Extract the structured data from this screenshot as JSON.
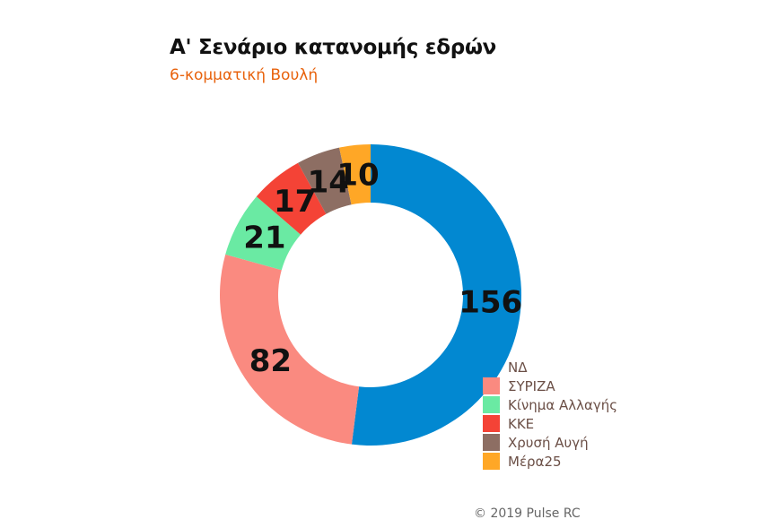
{
  "chart_data": {
    "type": "pie",
    "variant": "donut",
    "title": "Α' Σενάριο κατανομής εδρών",
    "subtitle": "6-κομματική Βουλή",
    "caption": "© 2019 Pulse RC",
    "legend_position": "bottom-right",
    "categories": [
      "ΝΔ",
      "ΣΥΡΙΖΑ",
      "Κίνημα Αλλαγής",
      "ΚΚΕ",
      "Χρυσή Αυγή",
      "Μέρα25"
    ],
    "values": [
      156,
      82,
      21,
      17,
      14,
      10
    ],
    "colors": [
      "#0288d1",
      "#fa8a80",
      "#6aeaa3",
      "#f44336",
      "#8d6e63",
      "#ffa726"
    ]
  }
}
